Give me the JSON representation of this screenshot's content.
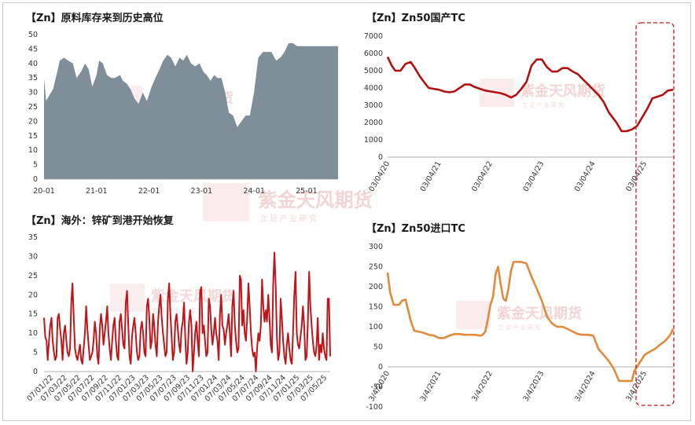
{
  "panels": {
    "inventory": {
      "title": "【Zn】原料库存来到历史高位"
    },
    "domestic_tc": {
      "title": "【Zn】Zn50国产TC"
    },
    "ore_arrivals": {
      "title": "【Zn】海外：锌矿到港开始恢复"
    },
    "import_tc": {
      "title": "【Zn】Zn50进口TC"
    }
  },
  "watermark": {
    "name": "紫金天风期货",
    "slogan": "立 足 产 业   研 究"
  },
  "colors": {
    "area": "#7f8f9a",
    "domestic": "#b21010",
    "arrivals": "#c0161a",
    "import": "#de8b3c",
    "highlight": "#c0161a"
  },
  "chart_data": [
    {
      "type": "area",
      "title": "【Zn】原料库存来到历史高位",
      "x_ticks": [
        "20-01",
        "21-01",
        "22-01",
        "23-01",
        "24-01",
        "25-01"
      ],
      "y_ticks": [
        "0",
        "5",
        "10",
        "15",
        "20",
        "25",
        "30",
        "35",
        "40",
        "45",
        "50"
      ],
      "ylim": [
        0,
        50
      ],
      "x_range": [
        2020.0,
        2025.6
      ],
      "x": [
        2020.0,
        2020.04,
        2020.1,
        2020.17,
        2020.25,
        2020.3,
        2020.38,
        2020.46,
        2020.55,
        2020.62,
        2020.7,
        2020.78,
        2020.85,
        2020.92,
        2021.0,
        2021.05,
        2021.12,
        2021.2,
        2021.28,
        2021.35,
        2021.45,
        2021.5,
        2021.58,
        2021.65,
        2021.72,
        2021.8,
        2021.88,
        2021.96,
        2022.05,
        2022.12,
        2022.2,
        2022.27,
        2022.35,
        2022.42,
        2022.5,
        2022.58,
        2022.65,
        2022.72,
        2022.8,
        2022.88,
        2022.96,
        2023.04,
        2023.1,
        2023.17,
        2023.24,
        2023.3,
        2023.38,
        2023.45,
        2023.52,
        2023.6,
        2023.68,
        2023.76,
        2023.84,
        2023.92,
        2024.0,
        2024.08,
        2024.17,
        2024.25,
        2024.33,
        2024.42,
        2024.5,
        2024.58,
        2024.66,
        2024.74,
        2024.82,
        2024.9,
        2024.98,
        2025.06,
        2025.14,
        2025.22,
        2025.3,
        2025.38,
        2025.46,
        2025.53,
        2025.6
      ],
      "values": [
        35,
        27,
        29,
        31,
        37,
        41,
        42,
        41,
        40,
        35,
        37,
        40,
        38,
        32,
        36,
        41,
        40,
        36,
        35,
        35,
        36,
        34,
        33,
        31,
        28,
        26,
        30,
        27,
        32,
        35,
        38,
        41,
        43,
        42,
        39,
        42,
        41,
        43,
        40,
        39,
        40,
        37,
        36,
        34,
        36,
        35,
        35,
        30,
        23,
        22,
        18,
        20,
        22,
        22,
        30,
        42,
        44,
        44,
        44,
        41,
        42,
        44,
        47,
        47,
        46,
        46,
        46,
        46,
        46,
        46,
        46,
        46,
        46,
        46,
        46
      ]
    },
    {
      "type": "line",
      "title": "【Zn】Zn50国产TC",
      "x_ticks": [
        "03/04/20",
        "03/04/21",
        "03/04/22",
        "03/04/23",
        "03/04/24",
        "03/04/25"
      ],
      "y_ticks": [
        "0",
        "1000",
        "2000",
        "3000",
        "4000",
        "5000",
        "6000",
        "7000"
      ],
      "ylim": [
        0,
        7000
      ],
      "x_range": [
        2020.0,
        2025.55
      ],
      "x": [
        2020.0,
        2020.08,
        2020.15,
        2020.25,
        2020.35,
        2020.45,
        2020.52,
        2020.62,
        2020.72,
        2020.8,
        2020.9,
        2021.0,
        2021.1,
        2021.2,
        2021.3,
        2021.4,
        2021.5,
        2021.6,
        2021.7,
        2021.8,
        2021.9,
        2022.0,
        2022.1,
        2022.2,
        2022.3,
        2022.4,
        2022.5,
        2022.6,
        2022.7,
        2022.8,
        2022.9,
        2023.0,
        2023.1,
        2023.2,
        2023.3,
        2023.4,
        2023.5,
        2023.6,
        2023.7,
        2023.8,
        2023.9,
        2024.0,
        2024.1,
        2024.2,
        2024.3,
        2024.45,
        2024.55,
        2024.65,
        2024.75,
        2024.85,
        2024.95,
        2025.05,
        2025.15,
        2025.25,
        2025.35,
        2025.45,
        2025.55
      ],
      "values": [
        5800,
        5300,
        5000,
        5000,
        5400,
        5500,
        5200,
        4700,
        4300,
        4000,
        3950,
        3900,
        3800,
        3750,
        3800,
        4000,
        4200,
        4200,
        4050,
        3950,
        3850,
        3800,
        3750,
        3700,
        3600,
        3450,
        3600,
        3950,
        4350,
        5300,
        5650,
        5650,
        5200,
        4950,
        4950,
        5150,
        5150,
        4950,
        4800,
        4500,
        4200,
        3900,
        3600,
        3200,
        2600,
        2000,
        1500,
        1500,
        1600,
        1800,
        2300,
        2800,
        3400,
        3500,
        3600,
        3850,
        3900
      ]
    },
    {
      "type": "line",
      "title": "【Zn】海外：锌矿到港开始恢复",
      "x_ticks": [
        "07/01/22",
        "07/03/22",
        "07/05/22",
        "07/07/22",
        "07/09/22",
        "07/11/22",
        "07/01/23",
        "07/03/23",
        "07/05/23",
        "07/07/23",
        "07/09/23",
        "07/11/23",
        "07/01/24",
        "07/03/24",
        "07/05/24",
        "07/07/24",
        "07/09/24",
        "07/11/24",
        "07/01/25",
        "07/03/25",
        "07/05/25"
      ],
      "y_ticks": [
        "0",
        "5",
        "10",
        "15",
        "20",
        "25",
        "30",
        "35"
      ],
      "ylim": [
        0,
        35
      ],
      "values": [
        14,
        9,
        8,
        3,
        8,
        12,
        14,
        8,
        5,
        3,
        4,
        14,
        15,
        11,
        8,
        3,
        10,
        12,
        8,
        5,
        4,
        6,
        18,
        23,
        14,
        6,
        4,
        3,
        5,
        7,
        3,
        2,
        6,
        10,
        17,
        11,
        7,
        3,
        4,
        5,
        8,
        13,
        10,
        4,
        2,
        11,
        15,
        12,
        7,
        10,
        13,
        17,
        10,
        6,
        3,
        8,
        12,
        14,
        8,
        4,
        3,
        13,
        15,
        11,
        7,
        6,
        18,
        21,
        12,
        4,
        2,
        9,
        12,
        14,
        10,
        5,
        3,
        4,
        11,
        13,
        10,
        5,
        4,
        17,
        19,
        14,
        6,
        8,
        15,
        12,
        7,
        4,
        13,
        17,
        20,
        14,
        10,
        7,
        4,
        5,
        19,
        23,
        15,
        9,
        3,
        5,
        13,
        15,
        11,
        7,
        5,
        11,
        13,
        18,
        9,
        2,
        5,
        13,
        16,
        12,
        0,
        5,
        10,
        13,
        8,
        4,
        21,
        22,
        10,
        12,
        8,
        4,
        5,
        19,
        17,
        11,
        7,
        10,
        14,
        10,
        8,
        3,
        15,
        20,
        12,
        11,
        7,
        10,
        12,
        15,
        10,
        4,
        17,
        21,
        12,
        8,
        5,
        6,
        25,
        24,
        12,
        16,
        10,
        8,
        14,
        23,
        17,
        10,
        6,
        4,
        5,
        0,
        6,
        10,
        8,
        12,
        24,
        17,
        13,
        16,
        13,
        20,
        14,
        7,
        5,
        23,
        31,
        22,
        9,
        3,
        5,
        19,
        14,
        8,
        4,
        2,
        7,
        10,
        6,
        3,
        2,
        10,
        20,
        26,
        10,
        7,
        6,
        9,
        12,
        17,
        12,
        3,
        4,
        13,
        26,
        17,
        12,
        8,
        5,
        4,
        7,
        14,
        3,
        7,
        5,
        10,
        6,
        4,
        3,
        19,
        19,
        4
      ]
    },
    {
      "type": "line",
      "title": "【Zn】Zn50进口TC",
      "x_ticks": [
        "3/4/2020",
        "3/4/2021",
        "3/4/2022",
        "3/4/2023",
        "3/4/2024",
        "3/4/2025"
      ],
      "y_ticks": [
        "-100",
        "-50",
        "0",
        "50",
        "100",
        "150",
        "200",
        "250",
        "300"
      ],
      "ylim": [
        -100,
        300
      ],
      "x_range": [
        2020.0,
        2025.55
      ],
      "x": [
        2020.0,
        2020.05,
        2020.12,
        2020.22,
        2020.28,
        2020.35,
        2020.45,
        2020.52,
        2020.6,
        2020.7,
        2020.8,
        2020.9,
        2021.0,
        2021.1,
        2021.2,
        2021.3,
        2021.4,
        2021.5,
        2021.6,
        2021.7,
        2021.8,
        2021.85,
        2021.9,
        2021.95,
        2022.0,
        2022.05,
        2022.1,
        2022.15,
        2022.2,
        2022.25,
        2022.3,
        2022.35,
        2022.4,
        2022.45,
        2022.55,
        2022.6,
        2022.7,
        2022.8,
        2022.9,
        2023.0,
        2023.1,
        2023.2,
        2023.3,
        2023.4,
        2023.5,
        2023.6,
        2023.7,
        2023.8,
        2023.9,
        2024.0,
        2024.1,
        2024.2,
        2024.3,
        2024.4,
        2024.5,
        2024.6,
        2024.7,
        2024.75,
        2024.8,
        2024.9,
        2025.0,
        2025.1,
        2025.2,
        2025.3,
        2025.4,
        2025.5,
        2025.55
      ],
      "values": [
        235,
        185,
        155,
        155,
        165,
        168,
        115,
        90,
        88,
        85,
        80,
        78,
        72,
        72,
        78,
        82,
        82,
        80,
        80,
        80,
        78,
        80,
        88,
        118,
        155,
        175,
        232,
        250,
        205,
        170,
        165,
        195,
        240,
        262,
        262,
        262,
        258,
        225,
        195,
        165,
        125,
        108,
        100,
        100,
        95,
        88,
        82,
        80,
        80,
        78,
        45,
        30,
        15,
        -5,
        -35,
        -35,
        -35,
        -35,
        -10,
        10,
        30,
        38,
        45,
        55,
        65,
        80,
        95
      ]
    }
  ]
}
